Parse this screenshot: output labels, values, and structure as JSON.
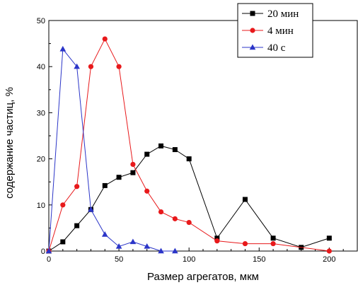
{
  "chart_data": {
    "type": "line",
    "title": "",
    "xlabel": "Размер агрегатов, мкм",
    "ylabel": "содержание частиц, %",
    "xlim": [
      0,
      220
    ],
    "ylim": [
      0,
      50
    ],
    "x_ticks": [
      0,
      50,
      100,
      150,
      200
    ],
    "y_ticks": [
      0,
      10,
      20,
      30,
      40,
      50
    ],
    "grid": false,
    "legend_position": "top-right",
    "series": [
      {
        "name": "20 мин",
        "color": "#000000",
        "marker": "square",
        "x": [
          0,
          10,
          20,
          30,
          40,
          50,
          60,
          70,
          80,
          90,
          100,
          120,
          140,
          160,
          180,
          200
        ],
        "y": [
          0,
          2,
          5.5,
          9,
          14.2,
          16,
          17,
          21,
          22.8,
          22,
          20,
          2.8,
          11.2,
          2.8,
          0.8,
          2.8
        ]
      },
      {
        "name": "4 мин",
        "color": "#e8191b",
        "marker": "circle",
        "x": [
          0,
          10,
          20,
          30,
          40,
          50,
          60,
          70,
          80,
          90,
          100,
          120,
          140,
          160,
          200
        ],
        "y": [
          0,
          10,
          14,
          40,
          46,
          40,
          18.8,
          13,
          8.5,
          7,
          6.2,
          2.2,
          1.6,
          1.6,
          0
        ]
      },
      {
        "name": "40 с",
        "color": "#2b35c8",
        "marker": "triangle",
        "x": [
          0,
          10,
          20,
          30,
          40,
          50,
          60,
          70,
          80,
          90
        ],
        "y": [
          0,
          43.8,
          40,
          9,
          3.6,
          1,
          2,
          1,
          0,
          0
        ]
      }
    ]
  }
}
